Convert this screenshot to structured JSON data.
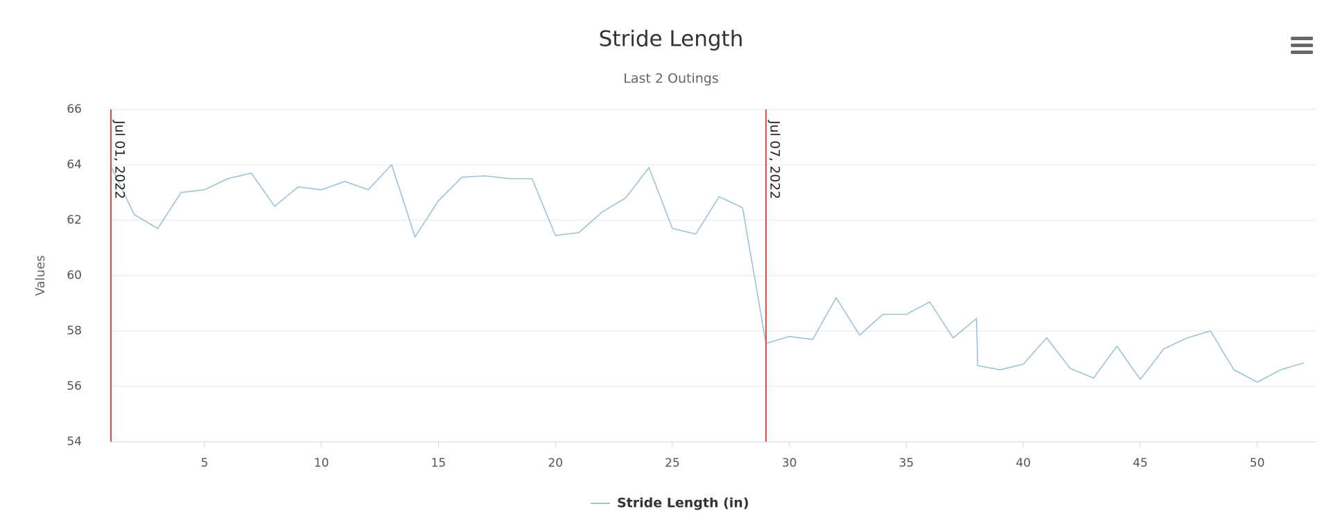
{
  "chart_data": {
    "type": "line",
    "title": "Stride Length",
    "subtitle": "Last 2 Outings",
    "y_label": "Values",
    "x": [
      1,
      2,
      3,
      4,
      5,
      6,
      7,
      8,
      9,
      10,
      11,
      12,
      13,
      14,
      15,
      16,
      17,
      18,
      19,
      20,
      21,
      22,
      23,
      24,
      25,
      26,
      27,
      28,
      29,
      30,
      31,
      32,
      33,
      34,
      35,
      36,
      37,
      38,
      38.05,
      39,
      40,
      41,
      42,
      43,
      44,
      45,
      46,
      47,
      48,
      49,
      50,
      51,
      52
    ],
    "series": [
      {
        "name": "Stride Length (in)",
        "color": "#9cc3d5",
        "values": [
          63.95,
          62.2,
          61.7,
          63.0,
          63.1,
          63.5,
          63.7,
          62.5,
          63.2,
          63.1,
          63.4,
          63.1,
          64.0,
          61.4,
          62.7,
          63.55,
          63.6,
          63.5,
          63.5,
          61.45,
          61.55,
          62.3,
          62.8,
          63.9,
          61.7,
          61.5,
          62.85,
          62.45,
          57.55,
          57.8,
          57.7,
          59.2,
          57.85,
          58.6,
          58.6,
          59.05,
          57.75,
          58.45,
          56.75,
          56.6,
          56.8,
          57.75,
          56.65,
          56.3,
          57.45,
          56.25,
          57.35,
          57.75,
          58.0,
          56.6,
          56.15,
          56.6,
          56.85
        ]
      }
    ],
    "xlim": [
      1,
      52.5
    ],
    "xticks": [
      5,
      10,
      15,
      20,
      25,
      30,
      35,
      40,
      45,
      50
    ],
    "ylim": [
      54,
      66
    ],
    "yticks": [
      54,
      56,
      58,
      60,
      62,
      64,
      66
    ],
    "grid": true,
    "plot_lines": [
      {
        "value": 1,
        "label": "Jul 01, 2022"
      },
      {
        "value": 29,
        "label": "Jul 07, 2022"
      }
    ],
    "plot_line_color": "#e0474c"
  }
}
